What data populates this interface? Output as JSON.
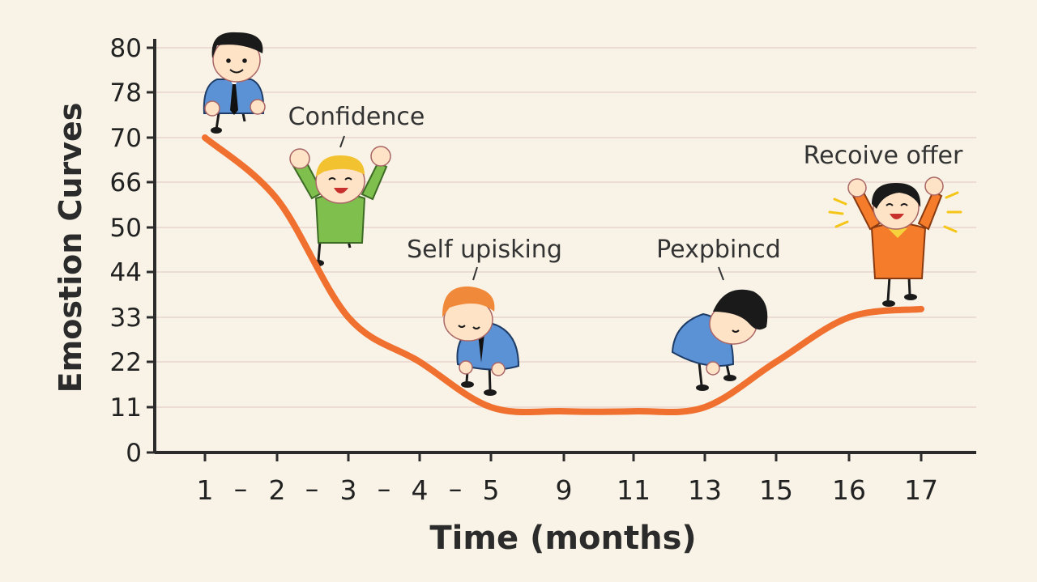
{
  "chart_data": {
    "type": "line",
    "xlabel": "Time (months)",
    "ylabel": "Emostion Curves",
    "y_tick_labels": [
      "0",
      "11",
      "22",
      "33",
      "44",
      "50",
      "66",
      "70",
      "78",
      "80"
    ],
    "x_tick_labels": [
      "1",
      "2",
      "3",
      "4",
      "5",
      "9",
      "11",
      "13",
      "15",
      "16",
      "17"
    ],
    "x_separators": [
      "–",
      "–",
      "–",
      "–"
    ],
    "grid": true,
    "legend": "none",
    "series": [
      {
        "color": "#f07030",
        "points": [
          {
            "x": "1",
            "y": 70
          },
          {
            "x": "2",
            "y": 60
          },
          {
            "x": "3",
            "y": 33
          },
          {
            "x": "4",
            "y": 22
          },
          {
            "x": "5",
            "y": 11
          },
          {
            "x": "9",
            "y": 10
          },
          {
            "x": "11",
            "y": 10
          },
          {
            "x": "13",
            "y": 11
          },
          {
            "x": "15",
            "y": 22
          },
          {
            "x": "16",
            "y": 33
          },
          {
            "x": "17",
            "y": 35
          }
        ]
      }
    ],
    "annotations": [
      {
        "text": "Confidence",
        "x": "2",
        "figure": "cheering-boy-icon"
      },
      {
        "text": "Self upisking",
        "x": "4",
        "figure": "slumped-man-icon"
      },
      {
        "text": "Pexpbincd",
        "x": "13",
        "figure": "bowing-man-icon"
      },
      {
        "text": "Recoive offer",
        "x": "17",
        "figure": "celebrating-girl-icon"
      }
    ],
    "start_figure": "businessman-icon"
  },
  "colors": {
    "background": "#f8f3e6",
    "grid": "#ecdcd4",
    "axis": "#2b2b2b",
    "curve": "#f07030"
  }
}
